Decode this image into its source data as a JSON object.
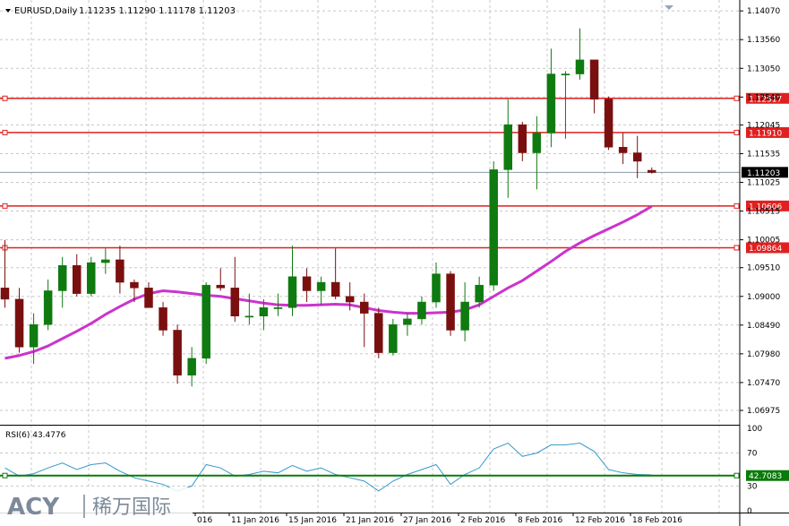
{
  "header": {
    "symbol": "EURUSD,Daily",
    "ohlc": "1.11235 1.11290 1.11178 1.11203"
  },
  "price_axis": {
    "ticks": [
      "1.14070",
      "1.13560",
      "1.13050",
      "1.12540",
      "1.12045",
      "1.11535",
      "1.11025",
      "1.10515",
      "1.10005",
      "1.09510",
      "1.09000",
      "1.08490",
      "1.07980",
      "1.07470",
      "1.06975"
    ],
    "current_price": "1.11203"
  },
  "rsi": {
    "label": "RSI(6) 43.4776",
    "ticks": [
      "100",
      "70",
      "30",
      "0"
    ],
    "level_label": "42.7083"
  },
  "date_axis": {
    "labels": [
      "016",
      "11 Jan 2016",
      "15 Jan 2016",
      "21 Jan 2016",
      "27 Jan 2016",
      "2 Feb 2016",
      "8 Feb 2016",
      "12 Feb 2016",
      "18 Feb 2016"
    ]
  },
  "horizontal_lines": [
    {
      "label": "1.12517",
      "color": "#e02020"
    },
    {
      "label": "1.11910",
      "color": "#e02020"
    },
    {
      "label": "1.10606",
      "color": "#e02020"
    },
    {
      "label": "1.09864",
      "color": "#e02020"
    }
  ],
  "logo": {
    "brand": "ACY",
    "chinese": "稀万国际"
  },
  "colors": {
    "bull": "#0f7a0f",
    "bear": "#7a0f0f",
    "ma": "#cc33cc",
    "rsi": "#3399cc",
    "level": "#e02020",
    "rsi_level": "#0a7a0a"
  },
  "chart_data": [
    {
      "type": "candlestick",
      "symbol": "EURUSD",
      "timeframe": "Daily",
      "ylim": [
        1.068,
        1.142
      ],
      "candles": [
        {
          "o": 1.0915,
          "h": 1.1,
          "l": 1.088,
          "c": 1.0895
        },
        {
          "o": 1.0895,
          "h": 1.0915,
          "l": 1.08,
          "c": 1.081
        },
        {
          "o": 1.081,
          "h": 1.087,
          "l": 1.078,
          "c": 1.085
        },
        {
          "o": 1.085,
          "h": 1.093,
          "l": 1.084,
          "c": 1.091
        },
        {
          "o": 1.091,
          "h": 1.097,
          "l": 1.088,
          "c": 1.0955
        },
        {
          "o": 1.0955,
          "h": 1.0975,
          "l": 1.09,
          "c": 1.0905
        },
        {
          "o": 1.0905,
          "h": 1.097,
          "l": 1.09,
          "c": 1.096
        },
        {
          "o": 1.096,
          "h": 1.0985,
          "l": 1.094,
          "c": 1.0965
        },
        {
          "o": 1.0965,
          "h": 1.099,
          "l": 1.0905,
          "c": 1.0925
        },
        {
          "o": 1.0925,
          "h": 1.093,
          "l": 1.089,
          "c": 1.0915
        },
        {
          "o": 1.0915,
          "h": 1.0925,
          "l": 1.088,
          "c": 1.088
        },
        {
          "o": 1.088,
          "h": 1.089,
          "l": 1.083,
          "c": 1.084
        },
        {
          "o": 1.084,
          "h": 1.085,
          "l": 1.0745,
          "c": 1.076
        },
        {
          "o": 1.076,
          "h": 1.081,
          "l": 1.074,
          "c": 1.079
        },
        {
          "o": 1.079,
          "h": 1.0925,
          "l": 1.078,
          "c": 1.092
        },
        {
          "o": 1.092,
          "h": 1.095,
          "l": 1.091,
          "c": 1.0915
        },
        {
          "o": 1.0915,
          "h": 1.097,
          "l": 1.0855,
          "c": 1.0865
        },
        {
          "o": 1.0865,
          "h": 1.0905,
          "l": 1.085,
          "c": 1.0865
        },
        {
          "o": 1.0865,
          "h": 1.0895,
          "l": 1.084,
          "c": 1.088
        },
        {
          "o": 1.088,
          "h": 1.0905,
          "l": 1.0865,
          "c": 1.088
        },
        {
          "o": 1.088,
          "h": 1.099,
          "l": 1.0865,
          "c": 1.0935
        },
        {
          "o": 1.0935,
          "h": 1.095,
          "l": 1.089,
          "c": 1.091
        },
        {
          "o": 1.091,
          "h": 1.0935,
          "l": 1.0885,
          "c": 1.0925
        },
        {
          "o": 1.0925,
          "h": 1.0985,
          "l": 1.0895,
          "c": 1.09
        },
        {
          "o": 1.09,
          "h": 1.0925,
          "l": 1.0875,
          "c": 1.089
        },
        {
          "o": 1.089,
          "h": 1.0905,
          "l": 1.081,
          "c": 1.087
        },
        {
          "o": 1.087,
          "h": 1.088,
          "l": 1.079,
          "c": 1.08
        },
        {
          "o": 1.08,
          "h": 1.086,
          "l": 1.0795,
          "c": 1.085
        },
        {
          "o": 1.085,
          "h": 1.087,
          "l": 1.083,
          "c": 1.086
        },
        {
          "o": 1.086,
          "h": 1.09,
          "l": 1.085,
          "c": 1.089
        },
        {
          "o": 1.089,
          "h": 1.096,
          "l": 1.088,
          "c": 1.094
        },
        {
          "o": 1.094,
          "h": 1.0945,
          "l": 1.083,
          "c": 1.084
        },
        {
          "o": 1.084,
          "h": 1.0925,
          "l": 1.082,
          "c": 1.089
        },
        {
          "o": 1.089,
          "h": 1.0935,
          "l": 1.088,
          "c": 1.092
        },
        {
          "o": 1.092,
          "h": 1.114,
          "l": 1.091,
          "c": 1.1125
        },
        {
          "o": 1.1125,
          "h": 1.125,
          "l": 1.1075,
          "c": 1.1205
        },
        {
          "o": 1.1205,
          "h": 1.121,
          "l": 1.114,
          "c": 1.1155
        },
        {
          "o": 1.1155,
          "h": 1.122,
          "l": 1.109,
          "c": 1.119
        },
        {
          "o": 1.119,
          "h": 1.134,
          "l": 1.1165,
          "c": 1.1295
        },
        {
          "o": 1.1295,
          "h": 1.13,
          "l": 1.118,
          "c": 1.1295
        },
        {
          "o": 1.1295,
          "h": 1.1376,
          "l": 1.1285,
          "c": 1.132
        },
        {
          "o": 1.132,
          "h": 1.132,
          "l": 1.1225,
          "c": 1.125
        },
        {
          "o": 1.125,
          "h": 1.1255,
          "l": 1.116,
          "c": 1.1165
        },
        {
          "o": 1.1165,
          "h": 1.119,
          "l": 1.1135,
          "c": 1.1155
        },
        {
          "o": 1.1155,
          "h": 1.1185,
          "l": 1.111,
          "c": 1.114
        },
        {
          "o": 1.1124,
          "h": 1.1129,
          "l": 1.1118,
          "c": 1.112
        }
      ],
      "moving_average": [
        1.079,
        1.0795,
        1.0802,
        1.0812,
        1.0825,
        1.0838,
        1.0852,
        1.0868,
        1.0882,
        1.0895,
        1.0905,
        1.091,
        1.0908,
        1.0905,
        1.0902,
        1.09,
        1.0896,
        1.0892,
        1.0888,
        1.0885,
        1.0884,
        1.0884,
        1.0885,
        1.0886,
        1.0885,
        1.088,
        1.0875,
        1.0872,
        1.087,
        1.087,
        1.0871,
        1.0872,
        1.0876,
        1.0885,
        1.09,
        1.0915,
        1.0928,
        1.0945,
        1.0962,
        1.098,
        1.0995,
        1.1008,
        1.102,
        1.1032,
        1.1045,
        1.106
      ],
      "levels": [
        1.12517,
        1.1191,
        1.10606,
        1.09864
      ],
      "current_price": 1.11203
    },
    {
      "type": "line",
      "name": "RSI(6)",
      "ylim": [
        0,
        100
      ],
      "values": [
        52,
        42,
        45,
        52,
        58,
        50,
        56,
        58,
        48,
        40,
        36,
        32,
        24,
        30,
        56,
        52,
        42,
        44,
        48,
        46,
        55,
        48,
        52,
        44,
        40,
        36,
        24,
        36,
        44,
        50,
        56,
        32,
        44,
        52,
        75,
        82,
        66,
        70,
        80,
        80,
        82,
        72,
        50,
        46,
        44,
        43.4776
      ],
      "level": 42.7083
    }
  ]
}
